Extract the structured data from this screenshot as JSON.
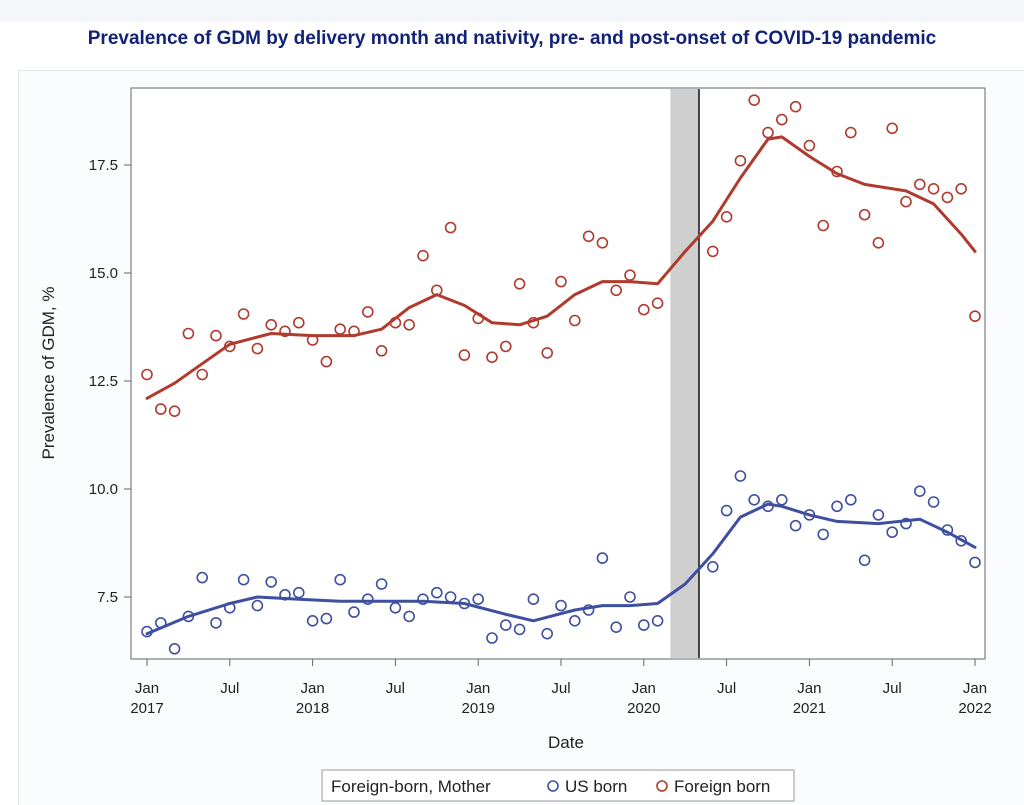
{
  "chart_data": {
    "type": "scatter",
    "title": "Prevalence of GDM by delivery month and nativity, pre- and post-onset of COVID-19 pandemic",
    "xlabel": "Date",
    "ylabel": "Prevalence of GDM, %",
    "xlim": [
      "2017-01",
      "2022-01"
    ],
    "ylim": [
      6.0,
      19.0
    ],
    "y_ticks": [
      "7.5",
      "10.0",
      "12.5",
      "15.0",
      "17.5"
    ],
    "x_ticks": [
      {
        "line1": "Jan",
        "line2": "2017"
      },
      {
        "line1": "Jul",
        "line2": ""
      },
      {
        "line1": "Jan",
        "line2": "2018"
      },
      {
        "line1": "Jul",
        "line2": ""
      },
      {
        "line1": "Jan",
        "line2": "2019"
      },
      {
        "line1": "Jul",
        "line2": ""
      },
      {
        "line1": "Jan",
        "line2": "2020"
      },
      {
        "line1": "Jul",
        "line2": ""
      },
      {
        "line1": "Jan",
        "line2": "2021"
      },
      {
        "line1": "Jul",
        "line2": ""
      },
      {
        "line1": "Jan",
        "line2": "2022"
      }
    ],
    "shaded_band": {
      "from": "2020-03",
      "to": "2020-05"
    },
    "vertical_line": "2020-05",
    "legend": {
      "title": "Foreign-born, Mother",
      "position": "bottom-center"
    },
    "series": [
      {
        "name": "US born",
        "color": "#3f4f9f",
        "points": [
          [
            "2017-01",
            6.7
          ],
          [
            "2017-02",
            6.9
          ],
          [
            "2017-03",
            6.3
          ],
          [
            "2017-04",
            7.05
          ],
          [
            "2017-05",
            7.95
          ],
          [
            "2017-06",
            6.9
          ],
          [
            "2017-07",
            7.25
          ],
          [
            "2017-08",
            7.9
          ],
          [
            "2017-09",
            7.3
          ],
          [
            "2017-10",
            7.85
          ],
          [
            "2017-11",
            7.55
          ],
          [
            "2017-12",
            7.6
          ],
          [
            "2018-01",
            6.95
          ],
          [
            "2018-02",
            7.0
          ],
          [
            "2018-03",
            7.9
          ],
          [
            "2018-04",
            7.15
          ],
          [
            "2018-05",
            7.45
          ],
          [
            "2018-06",
            7.8
          ],
          [
            "2018-07",
            7.25
          ],
          [
            "2018-08",
            7.05
          ],
          [
            "2018-09",
            7.45
          ],
          [
            "2018-10",
            7.6
          ],
          [
            "2018-11",
            7.5
          ],
          [
            "2018-12",
            7.35
          ],
          [
            "2019-01",
            7.45
          ],
          [
            "2019-02",
            6.55
          ],
          [
            "2019-03",
            6.85
          ],
          [
            "2019-04",
            6.75
          ],
          [
            "2019-05",
            7.45
          ],
          [
            "2019-06",
            6.65
          ],
          [
            "2019-07",
            7.3
          ],
          [
            "2019-08",
            6.95
          ],
          [
            "2019-09",
            7.2
          ],
          [
            "2019-10",
            8.4
          ],
          [
            "2019-11",
            6.8
          ],
          [
            "2019-12",
            7.5
          ],
          [
            "2020-01",
            6.85
          ],
          [
            "2020-02",
            6.95
          ],
          [
            "2020-06",
            8.2
          ],
          [
            "2020-07",
            9.5
          ],
          [
            "2020-08",
            10.3
          ],
          [
            "2020-09",
            9.75
          ],
          [
            "2020-10",
            9.6
          ],
          [
            "2020-11",
            9.75
          ],
          [
            "2020-12",
            9.15
          ],
          [
            "2021-01",
            9.4
          ],
          [
            "2021-02",
            8.95
          ],
          [
            "2021-03",
            9.6
          ],
          [
            "2021-04",
            9.75
          ],
          [
            "2021-05",
            8.35
          ],
          [
            "2021-06",
            9.4
          ],
          [
            "2021-07",
            9.0
          ],
          [
            "2021-08",
            9.2
          ],
          [
            "2021-09",
            9.95
          ],
          [
            "2021-10",
            9.7
          ],
          [
            "2021-11",
            9.05
          ],
          [
            "2021-12",
            8.8
          ],
          [
            "2022-01",
            8.3
          ]
        ],
        "trend": [
          [
            "2017-01",
            6.65
          ],
          [
            "2017-04",
            7.05
          ],
          [
            "2017-07",
            7.35
          ],
          [
            "2017-09",
            7.5
          ],
          [
            "2017-12",
            7.45
          ],
          [
            "2018-03",
            7.4
          ],
          [
            "2018-06",
            7.4
          ],
          [
            "2018-09",
            7.4
          ],
          [
            "2018-12",
            7.35
          ],
          [
            "2019-03",
            7.1
          ],
          [
            "2019-05",
            6.95
          ],
          [
            "2019-08",
            7.2
          ],
          [
            "2019-10",
            7.3
          ],
          [
            "2019-12",
            7.3
          ],
          [
            "2020-02",
            7.35
          ],
          [
            "2020-04",
            7.8
          ],
          [
            "2020-06",
            8.5
          ],
          [
            "2020-08",
            9.35
          ],
          [
            "2020-10",
            9.65
          ],
          [
            "2020-11",
            9.6
          ],
          [
            "2021-01",
            9.4
          ],
          [
            "2021-03",
            9.25
          ],
          [
            "2021-06",
            9.2
          ],
          [
            "2021-09",
            9.3
          ],
          [
            "2021-11",
            9.0
          ],
          [
            "2022-01",
            8.65
          ]
        ]
      },
      {
        "name": "Foreign born",
        "color": "#b03a2e",
        "points": [
          [
            "2017-01",
            12.65
          ],
          [
            "2017-02",
            11.85
          ],
          [
            "2017-03",
            11.8
          ],
          [
            "2017-04",
            13.6
          ],
          [
            "2017-05",
            12.65
          ],
          [
            "2017-06",
            13.55
          ],
          [
            "2017-07",
            13.3
          ],
          [
            "2017-08",
            14.05
          ],
          [
            "2017-09",
            13.25
          ],
          [
            "2017-10",
            13.8
          ],
          [
            "2017-11",
            13.65
          ],
          [
            "2017-12",
            13.85
          ],
          [
            "2018-01",
            13.45
          ],
          [
            "2018-02",
            12.95
          ],
          [
            "2018-03",
            13.7
          ],
          [
            "2018-04",
            13.65
          ],
          [
            "2018-05",
            14.1
          ],
          [
            "2018-06",
            13.2
          ],
          [
            "2018-07",
            13.85
          ],
          [
            "2018-08",
            13.8
          ],
          [
            "2018-09",
            15.4
          ],
          [
            "2018-10",
            14.6
          ],
          [
            "2018-11",
            16.05
          ],
          [
            "2018-12",
            13.1
          ],
          [
            "2019-01",
            13.95
          ],
          [
            "2019-02",
            13.05
          ],
          [
            "2019-03",
            13.3
          ],
          [
            "2019-04",
            14.75
          ],
          [
            "2019-05",
            13.85
          ],
          [
            "2019-06",
            13.15
          ],
          [
            "2019-07",
            14.8
          ],
          [
            "2019-08",
            13.9
          ],
          [
            "2019-09",
            15.85
          ],
          [
            "2019-10",
            15.7
          ],
          [
            "2019-11",
            14.6
          ],
          [
            "2019-12",
            14.95
          ],
          [
            "2020-01",
            14.15
          ],
          [
            "2020-02",
            14.3
          ],
          [
            "2020-06",
            15.5
          ],
          [
            "2020-07",
            16.3
          ],
          [
            "2020-08",
            17.6
          ],
          [
            "2020-09",
            19.0
          ],
          [
            "2020-10",
            18.25
          ],
          [
            "2020-11",
            18.55
          ],
          [
            "2020-12",
            18.85
          ],
          [
            "2021-01",
            17.95
          ],
          [
            "2021-02",
            16.1
          ],
          [
            "2021-03",
            17.35
          ],
          [
            "2021-04",
            18.25
          ],
          [
            "2021-05",
            16.35
          ],
          [
            "2021-06",
            15.7
          ],
          [
            "2021-07",
            18.35
          ],
          [
            "2021-08",
            16.65
          ],
          [
            "2021-09",
            17.05
          ],
          [
            "2021-10",
            16.95
          ],
          [
            "2021-11",
            16.75
          ],
          [
            "2021-12",
            16.95
          ],
          [
            "2022-01",
            14.0
          ]
        ],
        "trend": [
          [
            "2017-01",
            12.1
          ],
          [
            "2017-03",
            12.45
          ],
          [
            "2017-05",
            12.9
          ],
          [
            "2017-07",
            13.35
          ],
          [
            "2017-10",
            13.6
          ],
          [
            "2018-01",
            13.55
          ],
          [
            "2018-04",
            13.55
          ],
          [
            "2018-06",
            13.7
          ],
          [
            "2018-08",
            14.2
          ],
          [
            "2018-10",
            14.5
          ],
          [
            "2018-12",
            14.25
          ],
          [
            "2019-02",
            13.85
          ],
          [
            "2019-04",
            13.8
          ],
          [
            "2019-06",
            14.0
          ],
          [
            "2019-08",
            14.5
          ],
          [
            "2019-10",
            14.8
          ],
          [
            "2019-12",
            14.8
          ],
          [
            "2020-02",
            14.75
          ],
          [
            "2020-04",
            15.5
          ],
          [
            "2020-06",
            16.2
          ],
          [
            "2020-08",
            17.2
          ],
          [
            "2020-10",
            18.1
          ],
          [
            "2020-11",
            18.15
          ],
          [
            "2021-01",
            17.7
          ],
          [
            "2021-03",
            17.3
          ],
          [
            "2021-05",
            17.05
          ],
          [
            "2021-08",
            16.9
          ],
          [
            "2021-10",
            16.6
          ],
          [
            "2021-12",
            15.9
          ],
          [
            "2022-01",
            15.5
          ]
        ]
      }
    ]
  }
}
